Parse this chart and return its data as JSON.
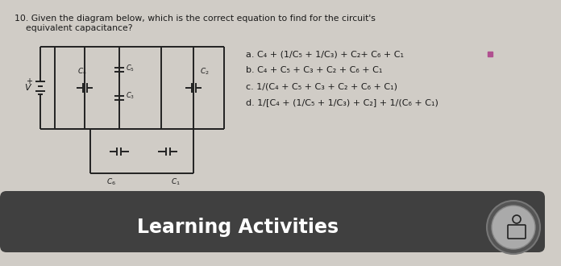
{
  "bg_color": "#d0ccc6",
  "title_line1": "10. Given the diagram below, which is the correct equation to find for the circuit's",
  "title_line2": "    equivalent capacitance?",
  "option_a": "a. C₄ + (1/C₅ + 1/C₃) + C₂+ C₆ + C₁",
  "option_b": "b. C₄ + C₅ + C₃ + C₂ + C₆ + C₁",
  "option_c": "c. 1/(C₄ + C₅ + C₃ + C₂ + C₆ + C₁)",
  "option_d": "d. 1/[C₄ + (1/C₅ + 1/C₃) + C₂] + 1/(C₆ + C₁)",
  "footer_text": "Learning Activities",
  "footer_bg": "#404040",
  "footer_text_color": "#ffffff",
  "dot_color": "#b05090",
  "text_color": "#1a1a1a",
  "line_color": "#222222",
  "line_width": 1.4
}
